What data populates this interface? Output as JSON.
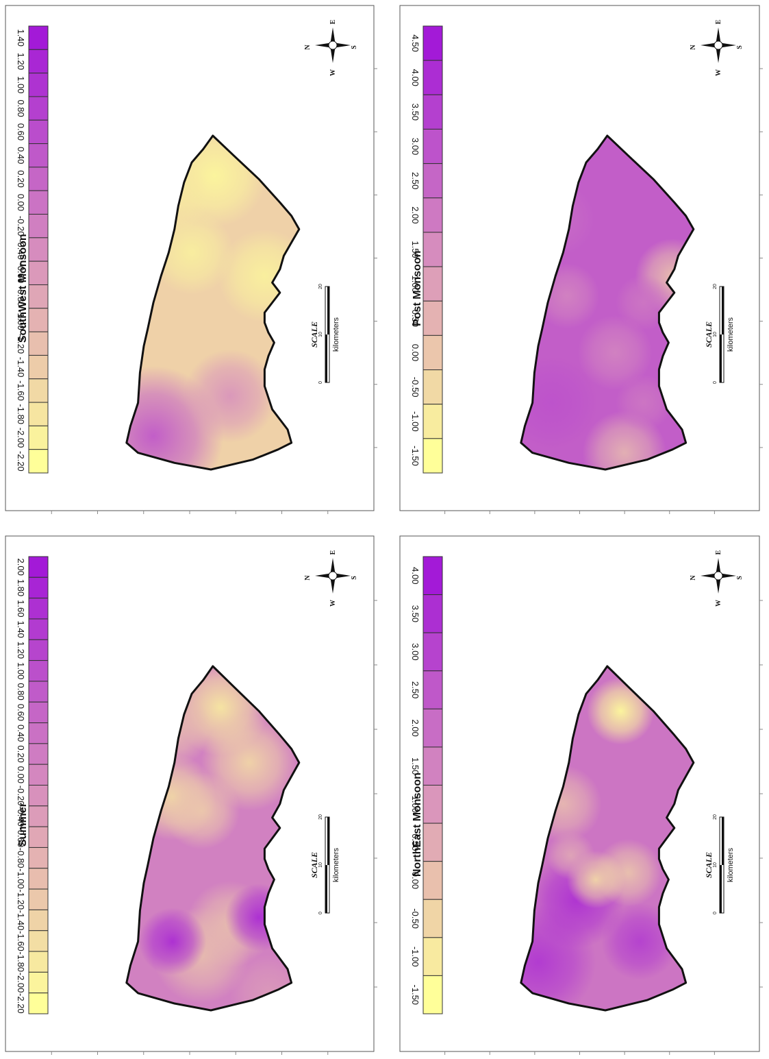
{
  "compass": {
    "n": "N",
    "e": "E",
    "s": "S",
    "w": "W"
  },
  "scale": {
    "title": "SCALE",
    "unit": "kilometers",
    "ticks": [
      "0",
      "10",
      "20"
    ]
  },
  "colors": {
    "high": "#a31ad7",
    "low": "#ffff99"
  },
  "panels": [
    {
      "id": "summer",
      "title": "Summer",
      "legend": [
        "2.00",
        "1.80",
        "1.60",
        "1.40",
        "1.20",
        "1.00",
        "0.80",
        "0.60",
        "0.40",
        "0.20",
        "0.00",
        "-0.20",
        "-0.40",
        "-0.60",
        "-0.80",
        "-1.00",
        "-1.20",
        "-1.40",
        "-1.60",
        "-1.80",
        "-2.00",
        "-2.20"
      ],
      "base_level": 0.45,
      "blobs": [
        {
          "u": 0.88,
          "v": 0.55,
          "r": 0.1,
          "level": 0.88
        },
        {
          "u": 0.72,
          "v": 0.7,
          "r": 0.1,
          "level": 0.8
        },
        {
          "u": 0.62,
          "v": 0.3,
          "r": 0.09,
          "level": 0.82
        },
        {
          "u": 0.58,
          "v": 0.45,
          "r": 0.08,
          "level": 0.75
        },
        {
          "u": 0.82,
          "v": 0.3,
          "r": 0.08,
          "level": 0.7
        },
        {
          "u": 0.16,
          "v": 0.45,
          "r": 0.1,
          "level": 0.7
        },
        {
          "u": 0.25,
          "v": 0.6,
          "r": 0.09,
          "level": 0.7
        },
        {
          "u": 0.05,
          "v": 0.8,
          "r": 0.08,
          "level": 0.55
        },
        {
          "u": 0.2,
          "v": 0.3,
          "r": 0.07,
          "level": 0.1
        },
        {
          "u": 0.27,
          "v": 0.75,
          "r": 0.07,
          "level": 0.1
        },
        {
          "u": 0.93,
          "v": 0.25,
          "r": 0.05,
          "level": 0.2
        }
      ]
    },
    {
      "id": "southwest",
      "title": "SouthWest Monsoon",
      "legend": [
        "1.40",
        "1.20",
        "1.00",
        "0.80",
        "0.60",
        "0.40",
        "0.20",
        "0.00",
        "-0.20",
        "-0.40",
        "-0.60",
        "-0.80",
        "-1.00",
        "-1.20",
        "-1.40",
        "-1.60",
        "-1.80",
        "-2.00",
        "-2.20"
      ],
      "base_level": 0.8,
      "blobs": [
        {
          "u": 0.1,
          "v": 0.2,
          "r": 0.15,
          "level": 0.3
        },
        {
          "u": 0.22,
          "v": 0.6,
          "r": 0.1,
          "level": 0.55
        },
        {
          "u": 0.88,
          "v": 0.52,
          "r": 0.11,
          "level": 0.95
        },
        {
          "u": 0.58,
          "v": 0.78,
          "r": 0.1,
          "level": 0.93
        },
        {
          "u": 0.65,
          "v": 0.4,
          "r": 0.09,
          "level": 0.92
        },
        {
          "u": 0.82,
          "v": 0.3,
          "r": 0.08,
          "level": 0.9
        }
      ]
    },
    {
      "id": "northeast",
      "title": "NorthEast Monsoon",
      "legend": [
        "4.00",
        "3.50",
        "3.00",
        "2.50",
        "2.00",
        "1.50",
        "1.00",
        "0.50",
        "0.00",
        "-0.50",
        "-1.00",
        "-1.50"
      ],
      "base_level": 0.4,
      "blobs": [
        {
          "u": 0.14,
          "v": 0.15,
          "r": 0.12,
          "level": 0.15
        },
        {
          "u": 0.32,
          "v": 0.35,
          "r": 0.1,
          "level": 0.12
        },
        {
          "u": 0.2,
          "v": 0.68,
          "r": 0.08,
          "level": 0.18
        },
        {
          "u": 0.4,
          "v": 0.62,
          "r": 0.07,
          "level": 0.72
        },
        {
          "u": 0.6,
          "v": 0.28,
          "r": 0.08,
          "level": 0.68
        },
        {
          "u": 0.87,
          "v": 0.58,
          "r": 0.07,
          "level": 0.95
        },
        {
          "u": 0.38,
          "v": 0.45,
          "r": 0.06,
          "level": 0.8
        },
        {
          "u": 0.45,
          "v": 0.32,
          "r": 0.05,
          "level": 0.6
        }
      ]
    },
    {
      "id": "post",
      "title": "Post Monsoon",
      "legend": [
        "4.50",
        "4.00",
        "3.50",
        "3.00",
        "2.50",
        "2.00",
        "1.50",
        "1.00",
        "0.50",
        "0.00",
        "-0.50",
        "-1.00",
        "-1.50"
      ],
      "base_level": 0.3,
      "blobs": [
        {
          "u": 0.05,
          "v": 0.6,
          "r": 0.09,
          "level": 0.65
        },
        {
          "u": 0.2,
          "v": 0.22,
          "r": 0.1,
          "level": 0.25
        },
        {
          "u": 0.35,
          "v": 0.55,
          "r": 0.08,
          "level": 0.45
        },
        {
          "u": 0.58,
          "v": 0.85,
          "r": 0.08,
          "level": 0.7
        },
        {
          "u": 0.5,
          "v": 0.7,
          "r": 0.06,
          "level": 0.4
        },
        {
          "u": 0.52,
          "v": 0.3,
          "r": 0.07,
          "level": 0.45
        },
        {
          "u": 0.75,
          "v": 0.25,
          "r": 0.08,
          "level": 0.35
        },
        {
          "u": 0.2,
          "v": 0.7,
          "r": 0.06,
          "level": 0.4
        }
      ]
    }
  ]
}
